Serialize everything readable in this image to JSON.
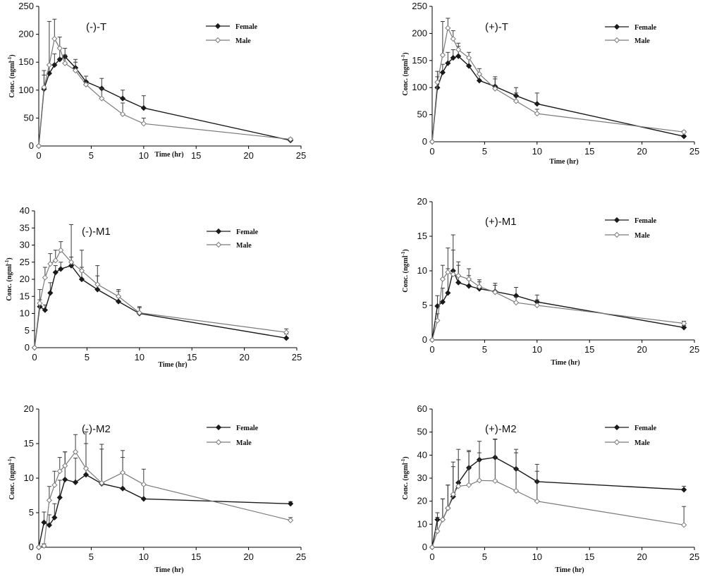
{
  "colors": {
    "female": "#1a1a1a",
    "male": "#7a7a7a",
    "axis": "#000000",
    "error_bar": "#3a3a3a"
  },
  "chart_data": [
    {
      "type": "line",
      "title": "(-)-T",
      "xlabel": "Time (hr)",
      "ylabel": "Conc. (ngml-1)",
      "xlim": [
        0,
        25
      ],
      "ylim": [
        0,
        250
      ],
      "xticks": [
        0,
        5,
        10,
        15,
        20,
        25
      ],
      "yticks": [
        0,
        50,
        100,
        150,
        200,
        250
      ],
      "legend": "top-right",
      "grid": false,
      "series": [
        {
          "name": "Female",
          "marker": "filled-diamond",
          "x": [
            0,
            0.5,
            1,
            1.5,
            2,
            2.5,
            3.5,
            4.5,
            6,
            8,
            10,
            24
          ],
          "y": [
            0,
            102,
            130,
            145,
            155,
            160,
            140,
            115,
            103,
            85,
            68,
            10
          ],
          "err": [
            0,
            25,
            15,
            20,
            20,
            15,
            15,
            10,
            18,
            15,
            22,
            2
          ]
        },
        {
          "name": "Male",
          "marker": "open-diamond",
          "x": [
            0,
            0.5,
            1,
            1.5,
            2,
            2.5,
            3.5,
            4.5,
            6,
            8,
            10,
            24
          ],
          "y": [
            0,
            105,
            145,
            192,
            175,
            148,
            135,
            110,
            85,
            57,
            40,
            12
          ],
          "err": [
            0,
            30,
            78,
            35,
            20,
            15,
            15,
            15,
            18,
            20,
            10,
            2
          ]
        }
      ]
    },
    {
      "type": "line",
      "title": "(+)-T",
      "xlabel": "Time (hr)",
      "ylabel": "Conc. (ngml-1)",
      "xlim": [
        0,
        25
      ],
      "ylim": [
        0,
        250
      ],
      "xticks": [
        0,
        5,
        10,
        15,
        20,
        25
      ],
      "yticks": [
        0,
        50,
        100,
        150,
        200,
        250
      ],
      "legend": "top-right",
      "grid": false,
      "series": [
        {
          "name": "Female",
          "marker": "filled-diamond",
          "x": [
            0,
            0.5,
            1,
            1.5,
            2,
            2.5,
            3.5,
            4.5,
            6,
            8,
            10,
            24
          ],
          "y": [
            0,
            100,
            128,
            145,
            155,
            158,
            140,
            113,
            102,
            85,
            70,
            10
          ],
          "err": [
            0,
            20,
            15,
            20,
            15,
            18,
            15,
            12,
            18,
            15,
            20,
            2
          ]
        },
        {
          "name": "Male",
          "marker": "open-diamond",
          "x": [
            0,
            0.5,
            1,
            1.5,
            2,
            2.5,
            3.5,
            4.5,
            6,
            8,
            10,
            24
          ],
          "y": [
            0,
            110,
            160,
            210,
            190,
            170,
            155,
            125,
            98,
            75,
            52,
            18
          ],
          "err": [
            0,
            20,
            62,
            18,
            15,
            12,
            10,
            10,
            18,
            15,
            8,
            2
          ]
        }
      ]
    },
    {
      "type": "line",
      "title": "(-)-M1",
      "xlabel": "Time (hr)",
      "ylabel": "Conc. (ngml-1)",
      "xlim": [
        0,
        25
      ],
      "ylim": [
        0,
        40
      ],
      "xticks": [
        0,
        5,
        10,
        15,
        20,
        25
      ],
      "yticks": [
        0,
        5,
        10,
        15,
        20,
        25,
        30,
        35,
        40
      ],
      "legend": "top-right",
      "grid": false,
      "series": [
        {
          "name": "Female",
          "marker": "filled-diamond",
          "x": [
            0,
            0.5,
            1,
            1.5,
            2,
            2.5,
            3.5,
            4.5,
            6,
            8,
            10,
            24
          ],
          "y": [
            0,
            12,
            11,
            16,
            22,
            23,
            24,
            20,
            17,
            13.5,
            10,
            2.8
          ],
          "err": [
            0,
            2,
            1.5,
            3,
            2,
            2,
            2.5,
            3.5,
            4,
            3,
            2,
            1.2
          ]
        },
        {
          "name": "Male",
          "marker": "open-diamond",
          "x": [
            0,
            0.5,
            1,
            1.5,
            2,
            2.5,
            3.5,
            4.5,
            6,
            8,
            10,
            24
          ],
          "y": [
            0,
            13,
            20.5,
            24.5,
            25.5,
            28.5,
            25,
            22.5,
            18.5,
            15,
            10.2,
            4.5
          ],
          "err": [
            0,
            4,
            3,
            3,
            3,
            2.5,
            11,
            6,
            5.5,
            2,
            1.5,
            1
          ]
        }
      ]
    },
    {
      "type": "line",
      "title": "(+)-M1",
      "xlabel": "Time (hr)",
      "ylabel": "Conc. (ngml-1)",
      "xlim": [
        0,
        25
      ],
      "ylim": [
        0,
        20
      ],
      "xticks": [
        0,
        5,
        10,
        15,
        20,
        25
      ],
      "yticks": [
        0,
        5,
        10,
        15,
        20
      ],
      "legend": "top-right",
      "grid": false,
      "series": [
        {
          "name": "Female",
          "marker": "filled-diamond",
          "x": [
            0,
            0.5,
            1,
            1.5,
            2,
            2.5,
            3.5,
            4.5,
            6,
            8,
            10,
            24
          ],
          "y": [
            0,
            4.9,
            5.5,
            6.8,
            10,
            8.3,
            7.8,
            7.4,
            7,
            6.4,
            5.5,
            1.8
          ],
          "err": [
            0,
            1.5,
            2,
            3.5,
            3,
            2.5,
            1.5,
            1,
            1.2,
            1.2,
            1,
            0.3
          ]
        },
        {
          "name": "Male",
          "marker": "open-diamond",
          "x": [
            0,
            0.5,
            1,
            1.5,
            2,
            2.5,
            3.5,
            4.5,
            6,
            8,
            10,
            24
          ],
          "y": [
            0,
            2.8,
            8.8,
            9.8,
            9.5,
            9.3,
            8.8,
            7.7,
            6.9,
            5.4,
            5,
            2.4
          ],
          "err": [
            0,
            1,
            2,
            3.5,
            5.7,
            2,
            1.5,
            1,
            1,
            0.8,
            0.8,
            0.3
          ]
        }
      ]
    },
    {
      "type": "line",
      "title": "(-)-M2",
      "xlabel": "Time (hr)",
      "ylabel": "Conc. (ngml-1)",
      "xlim": [
        0,
        25
      ],
      "ylim": [
        0,
        20
      ],
      "xticks": [
        0,
        5,
        10,
        15,
        20,
        25
      ],
      "yticks": [
        0,
        5,
        10,
        15,
        20
      ],
      "legend": "top-right",
      "grid": false,
      "series": [
        {
          "name": "Female",
          "marker": "filled-diamond",
          "x": [
            0,
            0.5,
            1,
            1.5,
            2,
            2.5,
            3.5,
            4.5,
            6,
            8,
            10,
            24
          ],
          "y": [
            0,
            3.6,
            3.2,
            4.3,
            7.2,
            9.8,
            9.4,
            10.5,
            9.2,
            8.5,
            7,
            6.3
          ],
          "err": [
            0,
            1.5,
            1.5,
            2,
            2.5,
            4,
            3.5,
            4.5,
            5,
            4.5,
            2,
            0.3
          ]
        },
        {
          "name": "Male",
          "marker": "open-diamond",
          "x": [
            0,
            0.5,
            1,
            1.5,
            2,
            2.5,
            3.5,
            4.5,
            6,
            8,
            10,
            24
          ],
          "y": [
            0,
            0.2,
            6.8,
            9,
            11,
            11.8,
            13.8,
            11.4,
            9.3,
            10.8,
            9.1,
            3.9
          ],
          "err": [
            0,
            0.3,
            2,
            2,
            2,
            2,
            2.5,
            5.3,
            5.6,
            3.2,
            2.2,
            0.4
          ]
        }
      ]
    },
    {
      "type": "line",
      "title": "(+)-M2",
      "xlabel": "Time (hr)",
      "ylabel": "Conc. (ngml-1)",
      "xlim": [
        0,
        25
      ],
      "ylim": [
        0,
        60
      ],
      "xticks": [
        0,
        5,
        10,
        15,
        20,
        25
      ],
      "yticks": [
        0,
        10,
        20,
        30,
        40,
        50,
        60
      ],
      "legend": "top-right",
      "grid": false,
      "series": [
        {
          "name": "Female",
          "marker": "filled-diamond",
          "x": [
            0,
            0.5,
            1,
            1.5,
            2,
            2.5,
            3.5,
            4.5,
            6,
            8,
            10,
            24
          ],
          "y": [
            0,
            12,
            12,
            17,
            22,
            28,
            34.5,
            38,
            39,
            34,
            28.5,
            25
          ],
          "err": [
            0,
            3,
            9,
            10,
            15,
            10,
            7,
            8,
            8,
            7,
            4.5,
            1.5
          ]
        },
        {
          "name": "Male",
          "marker": "open-diamond",
          "x": [
            0,
            0.5,
            1,
            1.5,
            2,
            2.5,
            3.5,
            4.5,
            6,
            8,
            10,
            24
          ],
          "y": [
            0,
            7,
            12,
            17,
            23,
            26.5,
            27,
            29,
            28.8,
            24.5,
            20,
            9.7
          ],
          "err": [
            0,
            6,
            9,
            10,
            12,
            16,
            15,
            12,
            18,
            18,
            16,
            8
          ]
        }
      ]
    }
  ]
}
